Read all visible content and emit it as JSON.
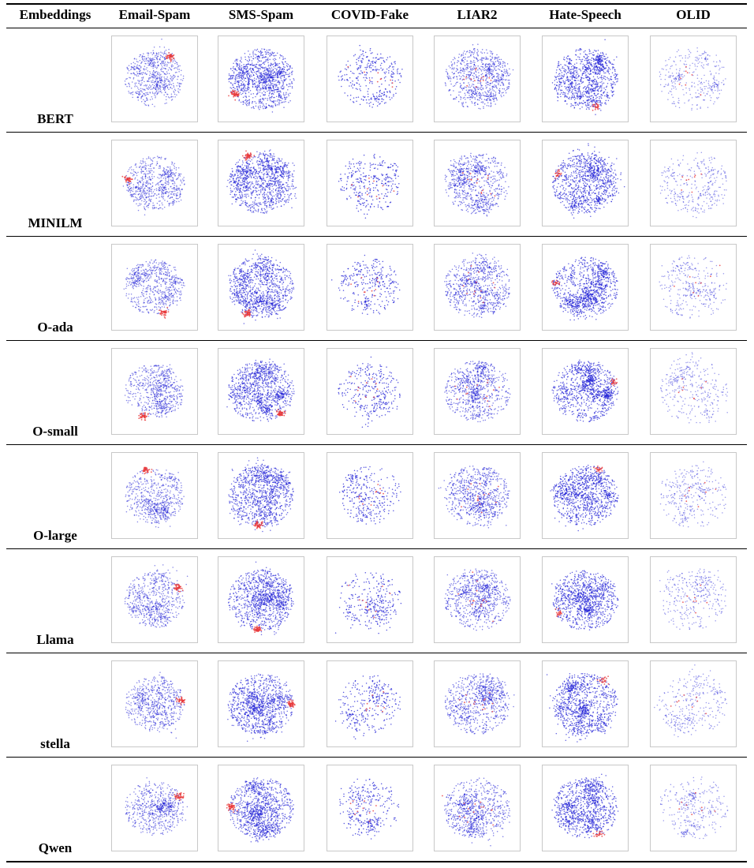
{
  "table": {
    "corner_header": "Embeddings",
    "columns": [
      "Email-Spam",
      "SMS-Spam",
      "COVID-Fake",
      "LIAR2",
      "Hate-Speech",
      "OLID"
    ],
    "rows": [
      "BERT",
      "MINILM",
      "O-ada",
      "O-small",
      "O-large",
      "Llama",
      "stella",
      "Qwen"
    ]
  },
  "colors": {
    "class_majority": "#1f1fd6",
    "class_minority": "#e8383a",
    "panel_border": "#c8c8c8"
  },
  "chart_data": {
    "type": "scatter",
    "description_of_marks": "t-SNE embedding projections per embedding model and dataset",
    "series": [
      {
        "name": "",
        "color": "#1f1fd6"
      },
      {
        "name": "",
        "color": "#e8383a"
      }
    ]
  }
}
